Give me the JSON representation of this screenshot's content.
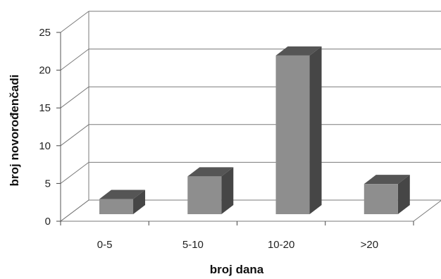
{
  "chart_data": {
    "type": "bar",
    "title": "",
    "xlabel": "broj dana",
    "ylabel": "broj novorođenčadi",
    "categories": [
      "0-5",
      "5-10",
      "10-20",
      ">20"
    ],
    "values": [
      2,
      5,
      21,
      4
    ],
    "ylim": [
      0,
      25
    ],
    "yticks": [
      0,
      5,
      10,
      15,
      20,
      25
    ],
    "grid": true,
    "legend": "none",
    "style": "3d-columns",
    "colors": {
      "bar_front": "#8e8e8e",
      "bar_top": "#555555",
      "bar_side": "#464646",
      "grid": "#7a7a7a"
    }
  }
}
